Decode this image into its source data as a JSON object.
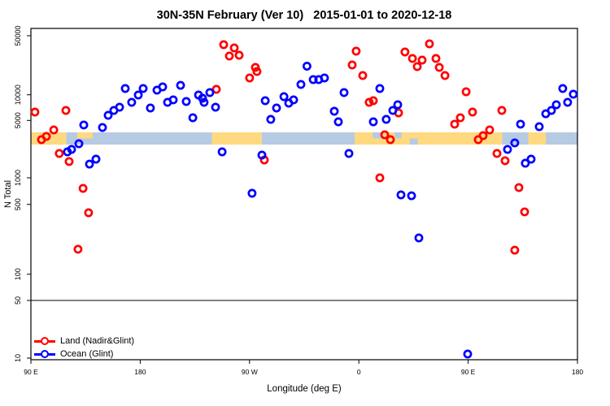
{
  "title": "30N-35N February (Ver 10)   2015-01-01 to 2020-12-18",
  "axes": {
    "x": {
      "label": "Longitude (deg E)",
      "note": "axis runs eastward from 90E wrapping past the dateline and prime meridian",
      "ticks": [
        {
          "deg": 90,
          "label": "90 E"
        },
        {
          "deg": 180,
          "label": "180"
        },
        {
          "deg": 270,
          "label": "90 W"
        },
        {
          "deg": 360,
          "label": "0"
        },
        {
          "deg": 450,
          "label": "90 E"
        },
        {
          "deg": 540,
          "label": "180"
        }
      ]
    },
    "y": {
      "label": "N Total",
      "scale": "log",
      "range": [
        10,
        50000
      ],
      "ticks": [
        {
          "value": 10,
          "label": "10"
        },
        {
          "value": 50,
          "label": "50"
        },
        {
          "value": 100,
          "label": "100"
        },
        {
          "value": 500,
          "label": "500"
        },
        {
          "value": 1000,
          "label": "1000"
        },
        {
          "value": 5000,
          "label": "5000"
        },
        {
          "value": 10000,
          "label": "10000"
        },
        {
          "value": 50000,
          "label": "50000"
        }
      ]
    }
  },
  "legend": [
    {
      "label": "Land (Nadir&Glint)",
      "color": "#FF0000"
    },
    {
      "label": "Ocean (Glint)",
      "color": "#0000FF"
    }
  ],
  "colors": {
    "land_marker": "#FF0000",
    "ocean_marker": "#0000FF",
    "band_land": "#FFD980",
    "band_ocean": "#B6CAE3",
    "threshold_line": "#000000",
    "box": "#000000"
  },
  "chart_data": {
    "type": "scatter",
    "title": "30N-35N February (Ver 10)   2015-01-01 to 2020-12-18",
    "xlabel": "Longitude (deg E)",
    "ylabel": "N Total",
    "x_axis_deg_range": [
      90,
      540
    ],
    "y_log_range": [
      10,
      50000
    ],
    "threshold_line_value": 50,
    "land_ocean_band": {
      "value_range": [
        2540,
        3580
      ],
      "segments": [
        {
          "from": 90,
          "to": 119,
          "surface": "land"
        },
        {
          "from": 119,
          "to": 239,
          "surface": "ocean"
        },
        {
          "from": 239,
          "to": 280,
          "surface": "land"
        },
        {
          "from": 280,
          "to": 356.5,
          "surface": "ocean"
        },
        {
          "from": 356.5,
          "to": 478,
          "surface": "land"
        },
        {
          "from": 478,
          "to": 540,
          "surface": "ocean"
        }
      ],
      "patches": [
        {
          "from": 128,
          "to": 141,
          "surface": "land",
          "part": "top"
        },
        {
          "from": 371.5,
          "to": 380,
          "surface": "ocean",
          "part": "top"
        },
        {
          "from": 389.5,
          "to": 395,
          "surface": "ocean",
          "part": "top"
        },
        {
          "from": 402,
          "to": 408.5,
          "surface": "ocean",
          "part": "bottom"
        },
        {
          "from": 499.5,
          "to": 514,
          "surface": "land",
          "part": "full"
        }
      ]
    },
    "series": [
      {
        "name": "Land (Nadir&Glint)",
        "color": "#FF0000",
        "points": [
          [
            93.3,
            6270
          ],
          [
            98.7,
            2915
          ],
          [
            102.7,
            3190
          ],
          [
            108.8,
            3830
          ],
          [
            113.4,
            1980
          ],
          [
            118.8,
            6550
          ],
          [
            121.5,
            1580
          ],
          [
            128.8,
            178
          ],
          [
            132.9,
            759
          ],
          [
            137.5,
            412
          ],
          [
            242.7,
            11600
          ],
          [
            248.7,
            39170
          ],
          [
            253.4,
            28750
          ],
          [
            257.4,
            35890
          ],
          [
            261.4,
            29380
          ],
          [
            270.1,
            15820
          ],
          [
            274.8,
            21080
          ],
          [
            276.1,
            18880
          ],
          [
            282.2,
            1650
          ],
          [
            354.5,
            22540
          ],
          [
            357.8,
            32830
          ],
          [
            363.2,
            16900
          ],
          [
            368.5,
            8150
          ],
          [
            371.9,
            8520
          ],
          [
            377.3,
            1000
          ],
          [
            381.3,
            3340
          ],
          [
            386.0,
            2915
          ],
          [
            392.7,
            6130
          ],
          [
            398.0,
            32140
          ],
          [
            404.1,
            26900
          ],
          [
            408.1,
            21550
          ],
          [
            412.1,
            25760
          ],
          [
            418.1,
            40100
          ],
          [
            423.5,
            26900
          ],
          [
            426.2,
            21080
          ],
          [
            430.9,
            16900
          ],
          [
            438.9,
            4500
          ],
          [
            443.6,
            5370
          ],
          [
            448.3,
            10850
          ],
          [
            453.6,
            6270
          ],
          [
            458.3,
            2915
          ],
          [
            462.3,
            3270
          ],
          [
            467.7,
            3830
          ],
          [
            473.7,
            1980
          ],
          [
            477.7,
            6550
          ],
          [
            480.4,
            1615
          ],
          [
            488.4,
            174
          ],
          [
            491.8,
            776
          ],
          [
            496.5,
            421
          ]
        ]
      },
      {
        "name": "Ocean (Glint)",
        "color": "#0000FF",
        "points": [
          [
            120.1,
            2070
          ],
          [
            123.5,
            2220
          ],
          [
            129.5,
            2600
          ],
          [
            133.5,
            4400
          ],
          [
            138.2,
            1470
          ],
          [
            143.6,
            1687
          ],
          [
            148.9,
            4100
          ],
          [
            153.6,
            5740
          ],
          [
            158.3,
            6550
          ],
          [
            163.0,
            7150
          ],
          [
            167.7,
            11860
          ],
          [
            173.0,
            8150
          ],
          [
            178.4,
            9930
          ],
          [
            182.4,
            11860
          ],
          [
            188.4,
            6990
          ],
          [
            193.8,
            11350
          ],
          [
            198.5,
            12390
          ],
          [
            202.5,
            8150
          ],
          [
            207.2,
            8710
          ],
          [
            213.2,
            12940
          ],
          [
            217.9,
            8330
          ],
          [
            223.3,
            5370
          ],
          [
            228.0,
            9930
          ],
          [
            231.3,
            9100
          ],
          [
            232.6,
            8150
          ],
          [
            237.3,
            10620
          ],
          [
            242.0,
            7150
          ],
          [
            247.4,
            2070
          ],
          [
            272.1,
            668
          ],
          [
            280.2,
            1890
          ],
          [
            282.9,
            8520
          ],
          [
            287.5,
            5140
          ],
          [
            292.2,
            6990
          ],
          [
            298.3,
            9510
          ],
          [
            302.3,
            7980
          ],
          [
            306.3,
            8710
          ],
          [
            312.3,
            13240
          ],
          [
            317.3,
            21780
          ],
          [
            322.4,
            15140
          ],
          [
            327.0,
            15140
          ],
          [
            331.7,
            15820
          ],
          [
            339.8,
            6410
          ],
          [
            343.1,
            4810
          ],
          [
            347.8,
            10620
          ],
          [
            351.8,
            1980
          ],
          [
            371.9,
            4810
          ],
          [
            377.3,
            11860
          ],
          [
            382.6,
            5140
          ],
          [
            388.0,
            6550
          ],
          [
            392.0,
            7640
          ],
          [
            394.7,
            641
          ],
          [
            403.4,
            626
          ],
          [
            409.4,
            231
          ],
          [
            449.6,
            11.2
          ],
          [
            482.4,
            2220
          ],
          [
            488.4,
            2660
          ],
          [
            493.1,
            4500
          ],
          [
            497.1,
            1507
          ],
          [
            501.8,
            1687
          ],
          [
            508.5,
            4200
          ],
          [
            513.9,
            5990
          ],
          [
            518.6,
            6550
          ],
          [
            522.6,
            7640
          ],
          [
            527.9,
            11860
          ],
          [
            531.9,
            8150
          ],
          [
            536.6,
            10160
          ]
        ]
      }
    ]
  }
}
